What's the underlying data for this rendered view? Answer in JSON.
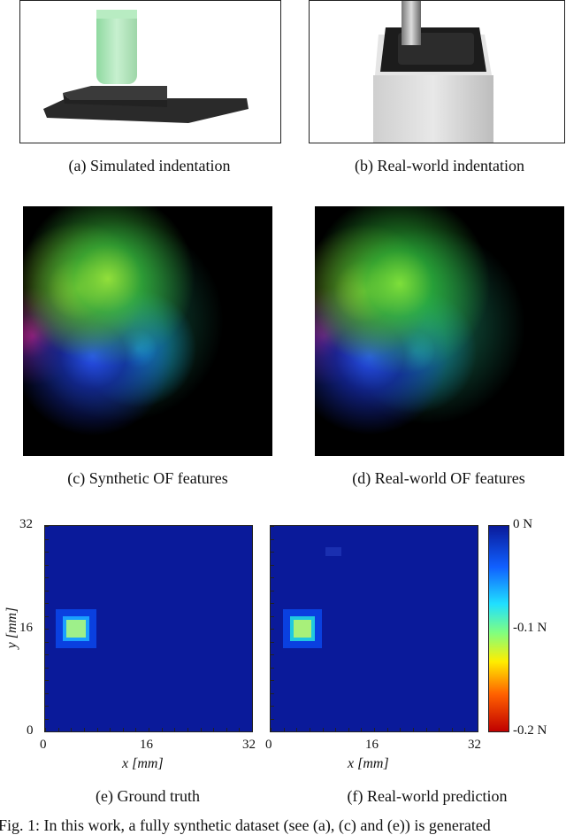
{
  "captions": {
    "a": "(a)  Simulated indentation",
    "b": "(b)  Real-world indentation",
    "c": "(c)  Synthetic OF features",
    "d": "(d)  Real-world OF features",
    "e": "(e)  Ground truth",
    "f": "(f)  Real-world prediction"
  },
  "footer_text": "Fig. 1: In this work, a fully synthetic dataset (see (a), (c) and (e)) is generated",
  "chart_data": [
    {
      "type": "heatmap",
      "title": "(e)  Ground truth",
      "xlabel": "x [mm]",
      "ylabel": "y [mm]",
      "x_ticks": [
        "0",
        "16",
        "32"
      ],
      "y_ticks": [
        "0",
        "16",
        "32"
      ],
      "xlim": [
        0,
        32
      ],
      "ylim": [
        0,
        32
      ],
      "hotspot": {
        "x": 5,
        "y": 16,
        "peak": -0.06
      },
      "background_value": 0
    },
    {
      "type": "heatmap",
      "title": "(f)  Real-world prediction",
      "xlabel": "x [mm]",
      "x_ticks": [
        "0",
        "16",
        "32"
      ],
      "xlim": [
        0,
        32
      ],
      "ylim": [
        0,
        32
      ],
      "hotspot": {
        "x": 5,
        "y": 16,
        "peak": -0.06
      },
      "background_value": 0
    }
  ],
  "colorbar": {
    "labels": [
      "0 N",
      "-0.1 N",
      "-0.2 N"
    ],
    "range": [
      0,
      -0.2
    ],
    "colors": [
      "#0a1a9a",
      "#1060ff",
      "#20e0ff",
      "#80ff80",
      "#ffee00",
      "#ff6000",
      "#c00000"
    ]
  }
}
